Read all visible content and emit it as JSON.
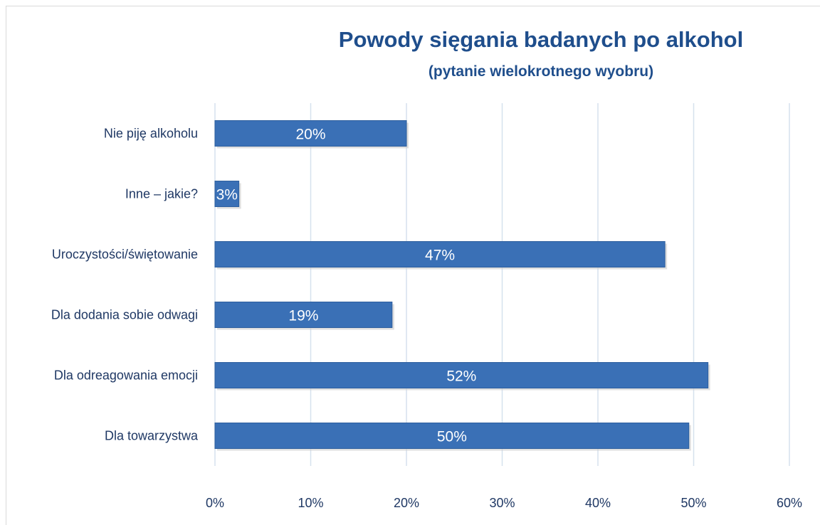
{
  "chart_data": {
    "type": "bar",
    "orientation": "horizontal",
    "title": "Powody sięgania badanych po alkohol",
    "subtitle": "(pytanie wielokrotnego wyobru)",
    "categories": [
      "Nie piję alkoholu",
      "Inne – jakie?",
      "Uroczystości/świętowanie",
      "Dla dodania sobie odwagi",
      "Dla odreagowania emocji",
      "Dla towarzystwa"
    ],
    "values": [
      20,
      2.5,
      47,
      18.5,
      51.5,
      49.5
    ],
    "data_labels": [
      "20%",
      "3%",
      "47%",
      "19%",
      "52%",
      "50%"
    ],
    "xlim": [
      0,
      60
    ],
    "x_ticks": [
      "0%",
      "10%",
      "20%",
      "30%",
      "40%",
      "50%",
      "60%"
    ],
    "grid": "vertical",
    "legend": "none",
    "colors": {
      "bar": "#3a70b6",
      "bar_edge": "#2e5f9e",
      "grid": "#d6e1ee",
      "title": "#1f4e8c"
    }
  }
}
